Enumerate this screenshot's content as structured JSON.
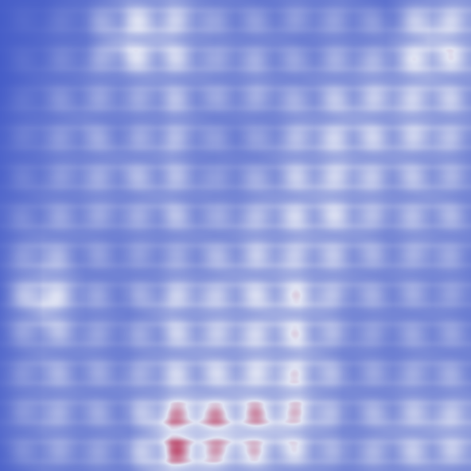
{
  "palette": {
    "background": "#4058c8",
    "low": "#3f57c6",
    "mid": "#dfe3f3",
    "high": "#b0103a"
  },
  "image": {
    "kind": "abstract-colormap-field",
    "colormap": "blue-white-red",
    "text": ""
  },
  "field": {
    "grid_rows": 12,
    "grid_cols": 12,
    "intensity": [
      [
        0.05,
        0.1,
        0.2,
        0.45,
        0.5,
        0.3,
        0.25,
        0.3,
        0.3,
        0.2,
        0.45,
        0.45
      ],
      [
        0.05,
        0.15,
        0.25,
        0.7,
        0.6,
        0.35,
        0.35,
        0.3,
        0.35,
        0.35,
        0.75,
        0.55
      ],
      [
        0.05,
        0.2,
        0.3,
        0.35,
        0.45,
        0.35,
        0.4,
        0.35,
        0.45,
        0.5,
        0.55,
        0.45
      ],
      [
        0.1,
        0.25,
        0.35,
        0.3,
        0.45,
        0.3,
        0.3,
        0.45,
        0.55,
        0.5,
        0.55,
        0.4
      ],
      [
        0.1,
        0.25,
        0.35,
        0.4,
        0.45,
        0.3,
        0.35,
        0.5,
        0.55,
        0.45,
        0.45,
        0.35
      ],
      [
        0.15,
        0.3,
        0.35,
        0.35,
        0.45,
        0.35,
        0.45,
        0.55,
        0.55,
        0.4,
        0.45,
        0.35
      ],
      [
        0.15,
        0.45,
        0.3,
        0.3,
        0.35,
        0.4,
        0.5,
        0.5,
        0.45,
        0.35,
        0.4,
        0.3
      ],
      [
        0.15,
        0.75,
        0.35,
        0.3,
        0.55,
        0.5,
        0.55,
        0.65,
        0.4,
        0.35,
        0.35,
        0.3
      ],
      [
        0.15,
        0.4,
        0.35,
        0.3,
        0.5,
        0.5,
        0.55,
        0.6,
        0.35,
        0.3,
        0.35,
        0.3
      ],
      [
        0.15,
        0.4,
        0.35,
        0.35,
        0.55,
        0.55,
        0.6,
        0.65,
        0.35,
        0.35,
        0.4,
        0.35
      ],
      [
        0.15,
        0.4,
        0.35,
        0.35,
        0.9,
        0.85,
        0.8,
        0.7,
        0.35,
        0.45,
        0.55,
        0.55
      ],
      [
        0.1,
        0.3,
        0.3,
        0.35,
        0.8,
        0.65,
        0.55,
        0.45,
        0.35,
        0.4,
        0.45,
        0.4
      ]
    ]
  }
}
